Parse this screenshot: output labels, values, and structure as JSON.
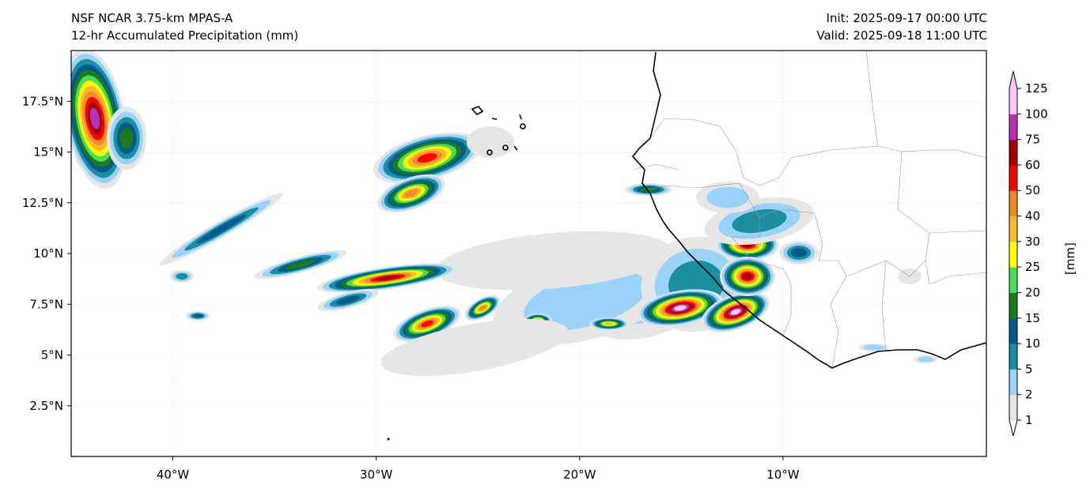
{
  "header": {
    "model": "NSF NCAR 3.75-km MPAS-A",
    "field": "12-hr Accumulated Precipitation (mm)",
    "init": "Init: 2025-09-17 00:00 UTC",
    "valid": "Valid: 2025-09-18 11:00 UTC"
  },
  "map": {
    "lon_range": [
      -45,
      0
    ],
    "lat_range": [
      0,
      20
    ],
    "x_ticks": [
      {
        "lon": -40,
        "label": "40°W"
      },
      {
        "lon": -30,
        "label": "30°W"
      },
      {
        "lon": -20,
        "label": "20°W"
      },
      {
        "lon": -10,
        "label": "10°W"
      }
    ],
    "y_ticks": [
      {
        "lat": 17.5,
        "label": "17.5°N"
      },
      {
        "lat": 15,
        "label": "15°N"
      },
      {
        "lat": 12.5,
        "label": "12.5°N"
      },
      {
        "lat": 10,
        "label": "10°N"
      },
      {
        "lat": 7.5,
        "label": "7.5°N"
      },
      {
        "lat": 5,
        "label": "5°N"
      },
      {
        "lat": 2.5,
        "label": "2.5°N"
      }
    ]
  },
  "colorbar": {
    "label": "[mm]",
    "levels": [
      "1",
      "2",
      "5",
      "10",
      "15",
      "20",
      "25",
      "30",
      "40",
      "50",
      "60",
      "75",
      "100",
      "125"
    ],
    "colors": [
      "#e6e6e6",
      "#9ad2fa",
      "#1b8fa0",
      "#045a8d",
      "#1e7a1e",
      "#4ddc5a",
      "#ffff00",
      "#f8b830",
      "#ee8c28",
      "#ff0000",
      "#a00000",
      "#b830b8",
      "#ffc8ff"
    ],
    "extend_min_color": "#ffffff",
    "extend_max_color": "#ffc8ff"
  }
}
